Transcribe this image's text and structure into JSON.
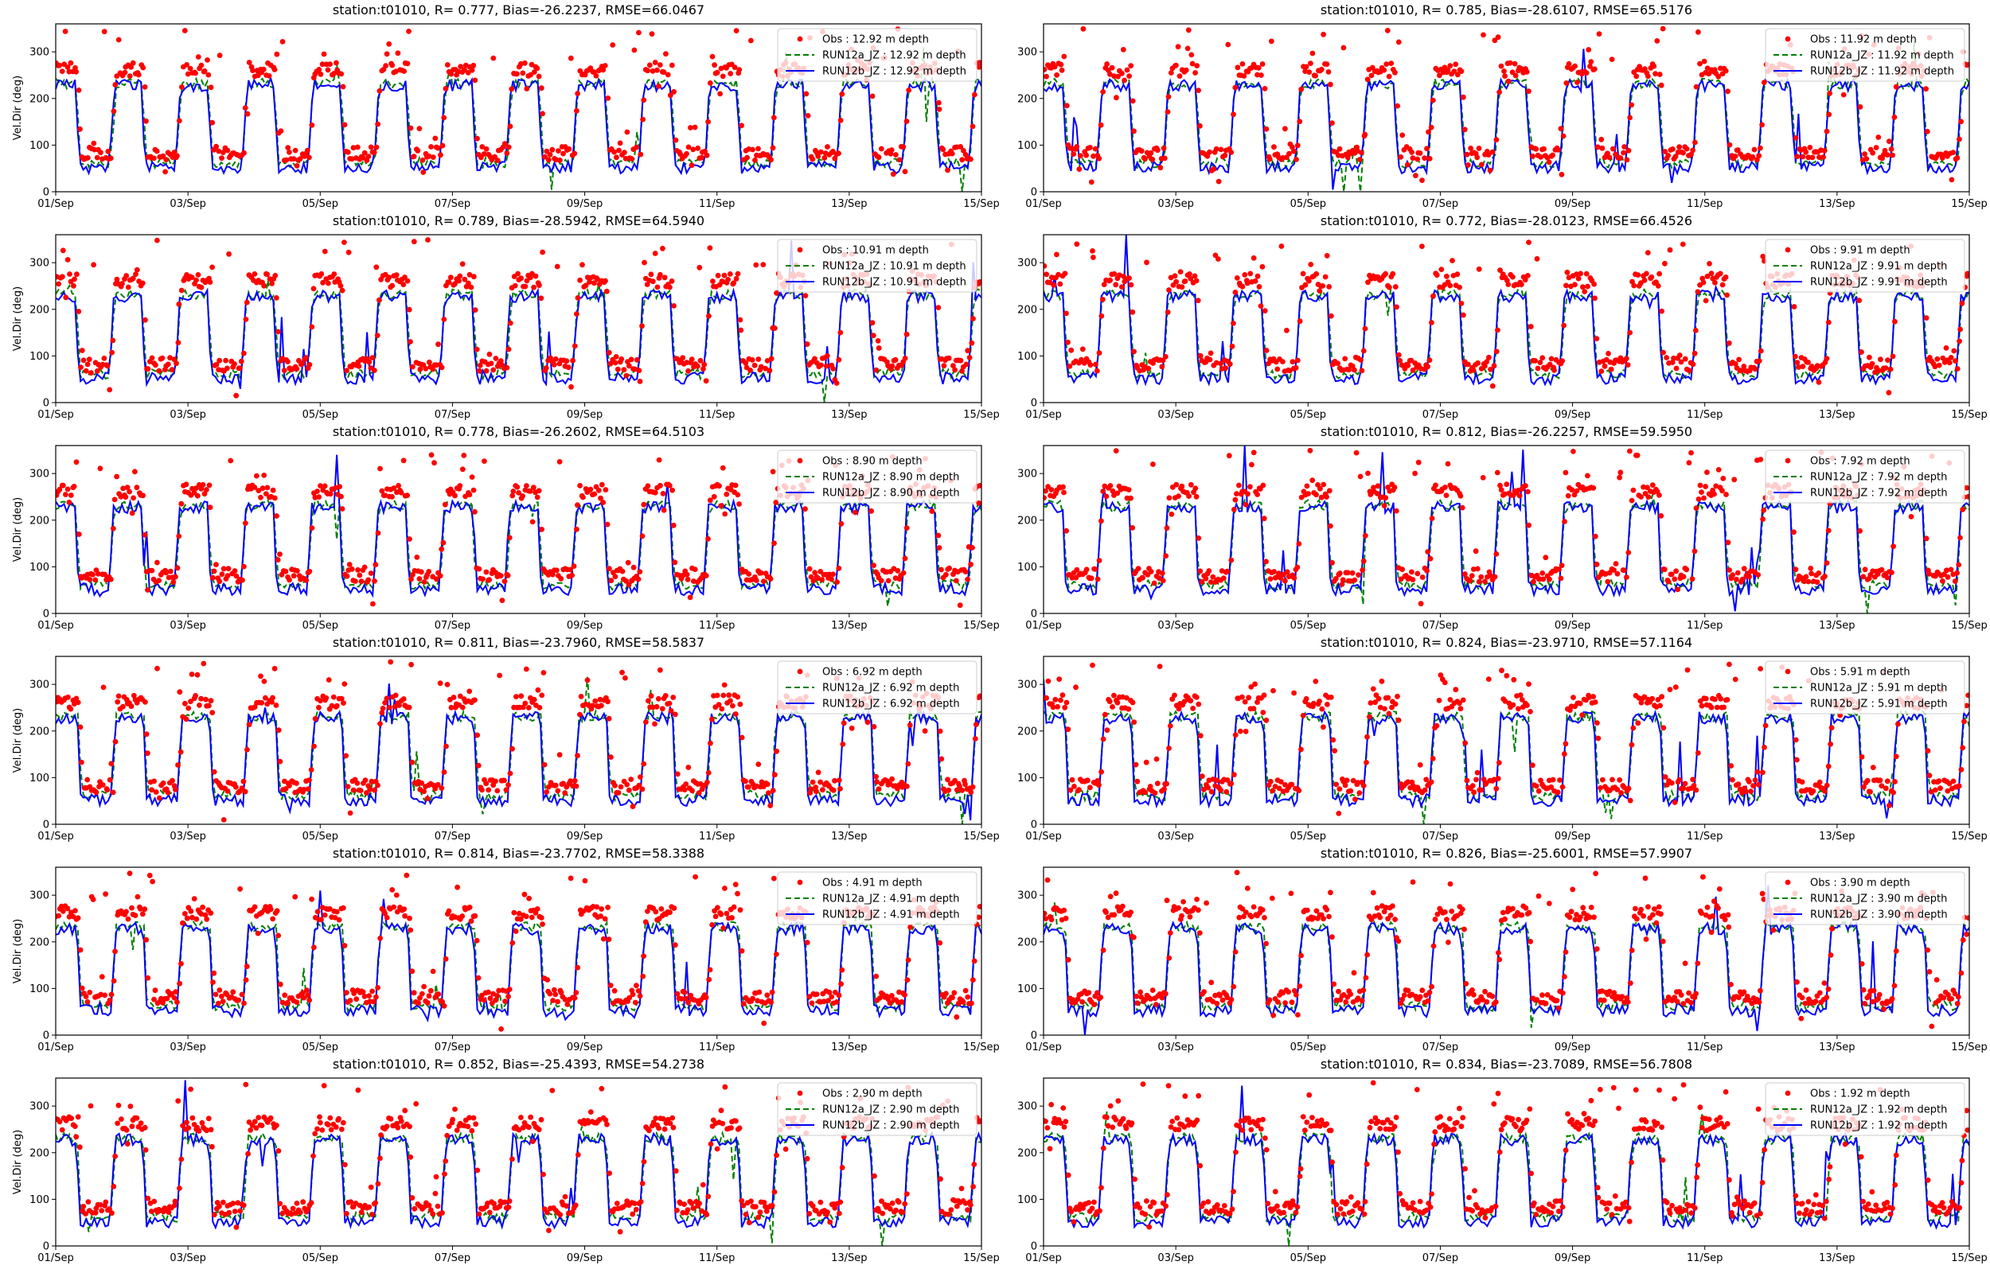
{
  "figure": {
    "colors": {
      "obs": "#ff0000",
      "run12a": "#008000",
      "run12b": "#0000ff"
    }
  },
  "chart_data": [
    {
      "type": "line",
      "title": "station:t01010, R= 0.777, Bias=-26.2237, RMSE=66.0467",
      "ylabel": "Vel.Dir (deg)",
      "xlabel": "",
      "x_ticks": [
        "01/Sep",
        "03/Sep",
        "05/Sep",
        "07/Sep",
        "09/Sep",
        "11/Sep",
        "13/Sep",
        "15/Sep"
      ],
      "y_ticks": [
        "0",
        "100",
        "200",
        "300"
      ],
      "xlim": [
        "2019-09-01",
        "2019-09-15"
      ],
      "ylim": [
        0,
        360
      ],
      "legend_position": "top-right",
      "series": [
        {
          "name": "Obs : 12.92 m depth",
          "style": "points",
          "summary": "diurnal alternation: high ~250-300 deg, low ~70-90 deg"
        },
        {
          "name": "RUN12a_JZ : 12.92 m depth",
          "style": "dashed line",
          "summary": "diurnal alternation: high ~230 deg, low ~60 deg"
        },
        {
          "name": "RUN12b_JZ : 12.92 m depth",
          "style": "solid line",
          "summary": "diurnal alternation: high ~230 deg, low ~50 deg"
        }
      ]
    },
    {
      "type": "line",
      "title": "station:t01010, R= 0.785, Bias=-28.6107, RMSE=65.5176",
      "ylabel": "",
      "xlabel": "",
      "x_ticks": [
        "01/Sep",
        "03/Sep",
        "05/Sep",
        "07/Sep",
        "09/Sep",
        "11/Sep",
        "13/Sep",
        "15/Sep"
      ],
      "y_ticks": [
        "0",
        "100",
        "200",
        "300"
      ],
      "xlim": [
        "2019-09-01",
        "2019-09-15"
      ],
      "ylim": [
        0,
        360
      ],
      "legend_position": "top-right",
      "series": [
        {
          "name": "Obs : 11.92 m depth",
          "style": "points",
          "summary": "diurnal alternation: high ~250-300 deg, low ~70-90 deg"
        },
        {
          "name": "RUN12a_JZ : 11.92 m depth",
          "style": "dashed line",
          "summary": "diurnal alternation: high ~230 deg, low ~60 deg"
        },
        {
          "name": "RUN12b_JZ : 11.92 m depth",
          "style": "solid line",
          "summary": "diurnal alternation: high ~230 deg, low ~50 deg"
        }
      ]
    },
    {
      "type": "line",
      "title": "station:t01010, R= 0.789, Bias=-28.5942, RMSE=64.5940",
      "ylabel": "Vel.Dir (deg)",
      "xlabel": "",
      "x_ticks": [
        "01/Sep",
        "03/Sep",
        "05/Sep",
        "07/Sep",
        "09/Sep",
        "11/Sep",
        "13/Sep",
        "15/Sep"
      ],
      "y_ticks": [
        "0",
        "100",
        "200",
        "300"
      ],
      "xlim": [
        "2019-09-01",
        "2019-09-15"
      ],
      "ylim": [
        0,
        360
      ],
      "legend_position": "top-right",
      "series": [
        {
          "name": "Obs : 10.91 m depth",
          "style": "points",
          "summary": "diurnal alternation: high ~250-300 deg, low ~70-90 deg"
        },
        {
          "name": "RUN12a_JZ : 10.91 m depth",
          "style": "dashed line",
          "summary": "diurnal alternation: high ~230 deg, low ~60 deg"
        },
        {
          "name": "RUN12b_JZ : 10.91 m depth",
          "style": "solid line",
          "summary": "diurnal alternation: high ~230 deg, low ~50 deg"
        }
      ]
    },
    {
      "type": "line",
      "title": "station:t01010, R= 0.772, Bias=-28.0123, RMSE=66.4526",
      "ylabel": "",
      "xlabel": "",
      "x_ticks": [
        "01/Sep",
        "03/Sep",
        "05/Sep",
        "07/Sep",
        "09/Sep",
        "11/Sep",
        "13/Sep",
        "15/Sep"
      ],
      "y_ticks": [
        "0",
        "100",
        "200",
        "300"
      ],
      "xlim": [
        "2019-09-01",
        "2019-09-15"
      ],
      "ylim": [
        0,
        360
      ],
      "legend_position": "top-right",
      "series": [
        {
          "name": "Obs : 9.91 m depth",
          "style": "points",
          "summary": "diurnal alternation: high ~250-300 deg, low ~70-90 deg"
        },
        {
          "name": "RUN12a_JZ : 9.91 m depth",
          "style": "dashed line",
          "summary": "diurnal alternation: high ~230 deg, low ~60 deg"
        },
        {
          "name": "RUN12b_JZ : 9.91 m depth",
          "style": "solid line",
          "summary": "diurnal alternation: high ~230 deg, low ~50 deg"
        }
      ]
    },
    {
      "type": "line",
      "title": "station:t01010, R= 0.778, Bias=-26.2602, RMSE=64.5103",
      "ylabel": "Vel.Dir (deg)",
      "xlabel": "",
      "x_ticks": [
        "01/Sep",
        "03/Sep",
        "05/Sep",
        "07/Sep",
        "09/Sep",
        "11/Sep",
        "13/Sep",
        "15/Sep"
      ],
      "y_ticks": [
        "0",
        "100",
        "200",
        "300"
      ],
      "xlim": [
        "2019-09-01",
        "2019-09-15"
      ],
      "ylim": [
        0,
        360
      ],
      "legend_position": "top-right",
      "series": [
        {
          "name": "Obs : 8.90 m depth",
          "style": "points",
          "summary": "diurnal alternation: high ~250-300 deg, low ~70-90 deg"
        },
        {
          "name": "RUN12a_JZ : 8.90 m depth",
          "style": "dashed line",
          "summary": "diurnal alternation: high ~230 deg, low ~60 deg"
        },
        {
          "name": "RUN12b_JZ : 8.90 m depth",
          "style": "solid line",
          "summary": "diurnal alternation: high ~230 deg, low ~50 deg"
        }
      ]
    },
    {
      "type": "line",
      "title": "station:t01010, R= 0.812, Bias=-26.2257, RMSE=59.5950",
      "ylabel": "",
      "xlabel": "",
      "x_ticks": [
        "01/Sep",
        "03/Sep",
        "05/Sep",
        "07/Sep",
        "09/Sep",
        "11/Sep",
        "13/Sep",
        "15/Sep"
      ],
      "y_ticks": [
        "0",
        "100",
        "200",
        "300"
      ],
      "xlim": [
        "2019-09-01",
        "2019-09-15"
      ],
      "ylim": [
        0,
        360
      ],
      "legend_position": "top-right",
      "series": [
        {
          "name": "Obs : 7.92 m depth",
          "style": "points",
          "summary": "diurnal alternation: high ~250-300 deg, low ~70-90 deg"
        },
        {
          "name": "RUN12a_JZ : 7.92 m depth",
          "style": "dashed line",
          "summary": "diurnal alternation: high ~230 deg, low ~60 deg"
        },
        {
          "name": "RUN12b_JZ : 7.92 m depth",
          "style": "solid line",
          "summary": "diurnal alternation: high ~230 deg, low ~50 deg"
        }
      ]
    },
    {
      "type": "line",
      "title": "station:t01010, R= 0.811, Bias=-23.7960, RMSE=58.5837",
      "ylabel": "Vel.Dir (deg)",
      "xlabel": "",
      "x_ticks": [
        "01/Sep",
        "03/Sep",
        "05/Sep",
        "07/Sep",
        "09/Sep",
        "11/Sep",
        "13/Sep",
        "15/Sep"
      ],
      "y_ticks": [
        "0",
        "100",
        "200",
        "300"
      ],
      "xlim": [
        "2019-09-01",
        "2019-09-15"
      ],
      "ylim": [
        0,
        360
      ],
      "legend_position": "top-right",
      "series": [
        {
          "name": "Obs : 6.92 m depth",
          "style": "points",
          "summary": "diurnal alternation: high ~250-300 deg, low ~70-90 deg"
        },
        {
          "name": "RUN12a_JZ : 6.92 m depth",
          "style": "dashed line",
          "summary": "diurnal alternation: high ~230 deg, low ~60 deg"
        },
        {
          "name": "RUN12b_JZ : 6.92 m depth",
          "style": "solid line",
          "summary": "diurnal alternation: high ~230 deg, low ~50 deg"
        }
      ]
    },
    {
      "type": "line",
      "title": "station:t01010, R= 0.824, Bias=-23.9710, RMSE=57.1164",
      "ylabel": "",
      "xlabel": "",
      "x_ticks": [
        "01/Sep",
        "03/Sep",
        "05/Sep",
        "07/Sep",
        "09/Sep",
        "11/Sep",
        "13/Sep",
        "15/Sep"
      ],
      "y_ticks": [
        "0",
        "100",
        "200",
        "300"
      ],
      "xlim": [
        "2019-09-01",
        "2019-09-15"
      ],
      "ylim": [
        0,
        360
      ],
      "legend_position": "top-right",
      "series": [
        {
          "name": "Obs : 5.91 m depth",
          "style": "points",
          "summary": "diurnal alternation: high ~250-300 deg, low ~70-90 deg"
        },
        {
          "name": "RUN12a_JZ : 5.91 m depth",
          "style": "dashed line",
          "summary": "diurnal alternation: high ~230 deg, low ~60 deg"
        },
        {
          "name": "RUN12b_JZ : 5.91 m depth",
          "style": "solid line",
          "summary": "diurnal alternation: high ~230 deg, low ~50 deg"
        }
      ]
    },
    {
      "type": "line",
      "title": "station:t01010, R= 0.814, Bias=-23.7702, RMSE=58.3388",
      "ylabel": "Vel.Dir (deg)",
      "xlabel": "",
      "x_ticks": [
        "01/Sep",
        "03/Sep",
        "05/Sep",
        "07/Sep",
        "09/Sep",
        "11/Sep",
        "13/Sep",
        "15/Sep"
      ],
      "y_ticks": [
        "0",
        "100",
        "200",
        "300"
      ],
      "xlim": [
        "2019-09-01",
        "2019-09-15"
      ],
      "ylim": [
        0,
        360
      ],
      "legend_position": "top-right",
      "series": [
        {
          "name": "Obs : 4.91 m depth",
          "style": "points",
          "summary": "diurnal alternation: high ~250-300 deg, low ~70-90 deg"
        },
        {
          "name": "RUN12a_JZ : 4.91 m depth",
          "style": "dashed line",
          "summary": "diurnal alternation: high ~230 deg, low ~60 deg"
        },
        {
          "name": "RUN12b_JZ : 4.91 m depth",
          "style": "solid line",
          "summary": "diurnal alternation: high ~230 deg, low ~50 deg"
        }
      ]
    },
    {
      "type": "line",
      "title": "station:t01010, R= 0.826, Bias=-25.6001, RMSE=57.9907",
      "ylabel": "",
      "xlabel": "",
      "x_ticks": [
        "01/Sep",
        "03/Sep",
        "05/Sep",
        "07/Sep",
        "09/Sep",
        "11/Sep",
        "13/Sep",
        "15/Sep"
      ],
      "y_ticks": [
        "0",
        "100",
        "200",
        "300"
      ],
      "xlim": [
        "2019-09-01",
        "2019-09-15"
      ],
      "ylim": [
        0,
        360
      ],
      "legend_position": "top-right",
      "series": [
        {
          "name": "Obs : 3.90 m depth",
          "style": "points",
          "summary": "diurnal alternation: high ~250-300 deg, low ~70-90 deg"
        },
        {
          "name": "RUN12a_JZ : 3.90 m depth",
          "style": "dashed line",
          "summary": "diurnal alternation: high ~230 deg, low ~60 deg"
        },
        {
          "name": "RUN12b_JZ : 3.90 m depth",
          "style": "solid line",
          "summary": "diurnal alternation: high ~230 deg, low ~50 deg"
        }
      ]
    },
    {
      "type": "line",
      "title": "station:t01010, R= 0.852, Bias=-25.4393, RMSE=54.2738",
      "ylabel": "Vel.Dir (deg)",
      "xlabel": "",
      "x_ticks": [
        "01/Sep",
        "03/Sep",
        "05/Sep",
        "07/Sep",
        "09/Sep",
        "11/Sep",
        "13/Sep",
        "15/Sep"
      ],
      "y_ticks": [
        "0",
        "100",
        "200",
        "300"
      ],
      "xlim": [
        "2019-09-01",
        "2019-09-15"
      ],
      "ylim": [
        0,
        360
      ],
      "legend_position": "top-right",
      "series": [
        {
          "name": "Obs : 2.90 m depth",
          "style": "points",
          "summary": "diurnal alternation: high ~250-300 deg, low ~70-90 deg"
        },
        {
          "name": "RUN12a_JZ : 2.90 m depth",
          "style": "dashed line",
          "summary": "diurnal alternation: high ~230 deg, low ~60 deg"
        },
        {
          "name": "RUN12b_JZ : 2.90 m depth",
          "style": "solid line",
          "summary": "diurnal alternation: high ~230 deg, low ~50 deg"
        }
      ]
    },
    {
      "type": "line",
      "title": "station:t01010, R= 0.834, Bias=-23.7089, RMSE=56.7808",
      "ylabel": "",
      "xlabel": "",
      "x_ticks": [
        "01/Sep",
        "03/Sep",
        "05/Sep",
        "07/Sep",
        "09/Sep",
        "11/Sep",
        "13/Sep",
        "15/Sep"
      ],
      "y_ticks": [
        "0",
        "100",
        "200",
        "300"
      ],
      "xlim": [
        "2019-09-01",
        "2019-09-15"
      ],
      "ylim": [
        0,
        360
      ],
      "legend_position": "top-right",
      "series": [
        {
          "name": "Obs : 1.92 m depth",
          "style": "points",
          "summary": "diurnal alternation: high ~250-300 deg, low ~70-90 deg"
        },
        {
          "name": "RUN12a_JZ : 1.92 m depth",
          "style": "dashed line",
          "summary": "diurnal alternation: high ~230 deg, low ~60 deg"
        },
        {
          "name": "RUN12b_JZ : 1.92 m depth",
          "style": "solid line",
          "summary": "diurnal alternation: high ~230 deg, low ~50 deg"
        }
      ]
    }
  ]
}
